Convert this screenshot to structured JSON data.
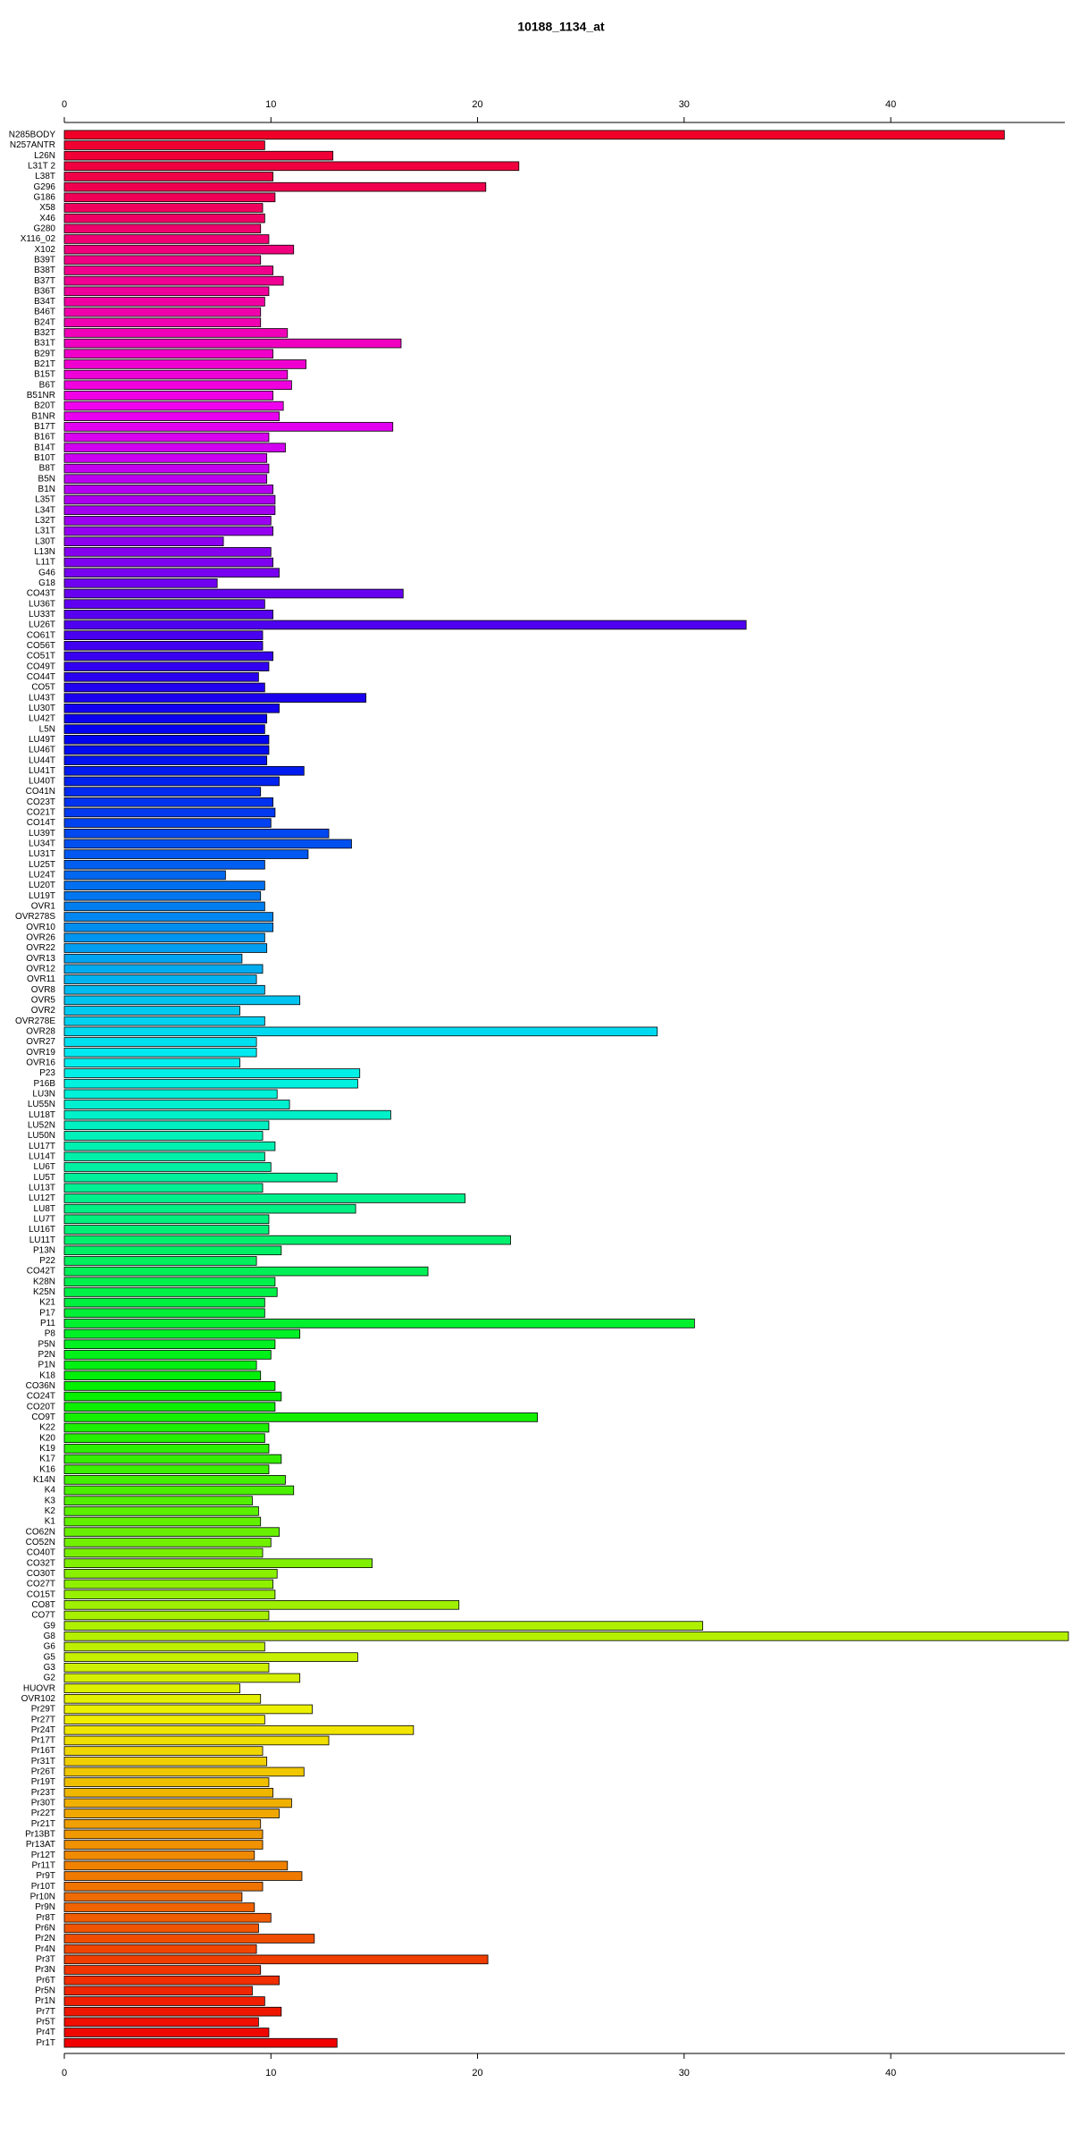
{
  "chart_data": {
    "type": "barh",
    "title": "10188_1134_at",
    "categories": [
      "N285BODY",
      "N257ANTR",
      "L26N",
      "L31T 2",
      "L38T",
      "G296",
      "G186",
      "X58",
      "X46",
      "G280",
      "X116_02",
      "X102",
      "B39T",
      "B38T",
      "B37T",
      "B36T",
      "B34T",
      "B46T",
      "B24T",
      "B32T",
      "B31T",
      "B29T",
      "B21T",
      "B15T",
      "B6T",
      "B51NR",
      "B20T",
      "B1NR",
      "B17T",
      "B16T",
      "B14T",
      "B10T",
      "B8T",
      "B5N",
      "B1N",
      "L35T",
      "L34T",
      "L32T",
      "L31T",
      "L30T",
      "L13N",
      "L11T",
      "G46",
      "G18",
      "CO43T",
      "LU36T",
      "LU33T",
      "LU26T",
      "CO61T",
      "CO56T",
      "CO51T",
      "CO49T",
      "CO44T",
      "CO5T",
      "LU43T",
      "LU30T",
      "LU42T",
      "L5N",
      "LU49T",
      "LU46T",
      "LU44T",
      "LU41T",
      "LU40T",
      "CO41N",
      "CO23T",
      "CO21T",
      "CO14T",
      "LU39T",
      "LU34T",
      "LU31T",
      "LU25T",
      "LU24T",
      "LU20T",
      "LU19T",
      "OVR1",
      "OVR278S",
      "OVR10",
      "OVR26",
      "OVR22",
      "OVR13",
      "OVR12",
      "OVR11",
      "OVR8",
      "OVR5",
      "OVR2",
      "OVR278E",
      "OVR28",
      "OVR27",
      "OVR19",
      "OVR16",
      "P23",
      "P16B",
      "LU3N",
      "LU55N",
      "LU18T",
      "LU52N",
      "LU50N",
      "LU17T",
      "LU14T",
      "LU6T",
      "LU5T",
      "LU13T",
      "LU12T",
      "LU8T",
      "LU7T",
      "LU16T",
      "LU11T",
      "P13N",
      "P22",
      "CO42T",
      "K28N",
      "K25N",
      "K21",
      "P17",
      "P11",
      "P8",
      "P5N",
      "P2N",
      "P1N",
      "K18",
      "CO36N",
      "CO24T",
      "CO20T",
      "CO9T",
      "K22",
      "K20",
      "K19",
      "K17",
      "K16",
      "K14N",
      "K4",
      "K3",
      "K2",
      "K1",
      "CO62N",
      "CO52N",
      "CO40T",
      "CO32T",
      "CO30T",
      "CO27T",
      "CO15T",
      "CO8T",
      "CO7T",
      "G9",
      "G8",
      "G6",
      "G5",
      "G3",
      "G2",
      "HUOVR",
      "OVR102",
      "Pr29T",
      "Pr27T",
      "Pr24T",
      "Pr17T",
      "Pr16T",
      "Pr31T",
      "Pr26T",
      "Pr19T",
      "Pr23T",
      "Pr30T",
      "Pr22T",
      "Pr21T",
      "Pr13BT",
      "Pr13AT",
      "Pr12T",
      "Pr11T",
      "Pr9T",
      "Pr10T",
      "Pr10N",
      "Pr9N",
      "Pr8T",
      "Pr6N",
      "Pr2N",
      "Pr4N",
      "Pr3T",
      "Pr3N",
      "Pr6T",
      "Pr5N",
      "Pr1N",
      "Pr7T",
      "Pr5T",
      "Pr4T",
      "Pr1T"
    ],
    "values": [
      45.5,
      9.7,
      13.0,
      22.0,
      10.1,
      20.4,
      10.2,
      9.6,
      9.7,
      9.5,
      9.9,
      11.1,
      9.5,
      10.1,
      10.6,
      9.9,
      9.7,
      9.5,
      9.5,
      10.8,
      16.3,
      10.1,
      11.7,
      10.8,
      11.0,
      10.1,
      10.6,
      10.4,
      15.9,
      9.9,
      10.7,
      9.8,
      9.9,
      9.8,
      10.1,
      10.2,
      10.2,
      10.0,
      10.1,
      7.7,
      10.0,
      10.1,
      10.4,
      7.4,
      16.4,
      9.7,
      10.1,
      33.0,
      9.6,
      9.6,
      10.1,
      9.9,
      9.4,
      9.7,
      14.6,
      10.4,
      9.8,
      9.7,
      9.9,
      9.9,
      9.8,
      11.6,
      10.4,
      9.5,
      10.1,
      10.2,
      10.0,
      12.8,
      13.9,
      11.8,
      9.7,
      7.8,
      9.7,
      9.5,
      9.7,
      10.1,
      10.1,
      9.7,
      9.8,
      8.6,
      9.6,
      9.3,
      9.7,
      11.4,
      8.5,
      9.7,
      28.7,
      9.3,
      9.3,
      8.5,
      14.3,
      14.2,
      10.3,
      10.9,
      15.8,
      9.9,
      9.6,
      10.2,
      9.7,
      10.0,
      13.2,
      9.6,
      19.4,
      14.1,
      9.9,
      9.9,
      21.6,
      10.5,
      9.3,
      17.6,
      10.2,
      10.3,
      9.7,
      9.7,
      30.5,
      11.4,
      10.2,
      10.0,
      9.3,
      9.5,
      10.2,
      10.5,
      10.2,
      22.9,
      9.9,
      9.7,
      9.9,
      10.5,
      9.9,
      10.7,
      11.1,
      9.1,
      9.4,
      9.5,
      10.4,
      10.0,
      9.6,
      14.9,
      10.3,
      10.1,
      10.2,
      19.1,
      9.9,
      30.9,
      48.6,
      9.7,
      14.2,
      9.9,
      11.4,
      8.5,
      9.5,
      12.0,
      9.7,
      16.9,
      12.8,
      9.6,
      9.8,
      11.6,
      9.9,
      10.1,
      11.0,
      10.4,
      9.5,
      9.6,
      9.6,
      9.2,
      10.8,
      11.5,
      9.6,
      8.6,
      9.2,
      10.0,
      9.4,
      12.1,
      9.3,
      20.5,
      9.5,
      10.4,
      9.1,
      9.7,
      10.5,
      9.4,
      9.9,
      13.2
    ],
    "color_scale": {
      "hue_from": 350,
      "hue_to": 0,
      "saturation": 100,
      "lightness": 47
    },
    "xlim": [
      0,
      48.6
    ],
    "xticks": [
      0,
      10,
      20,
      30,
      40
    ]
  }
}
